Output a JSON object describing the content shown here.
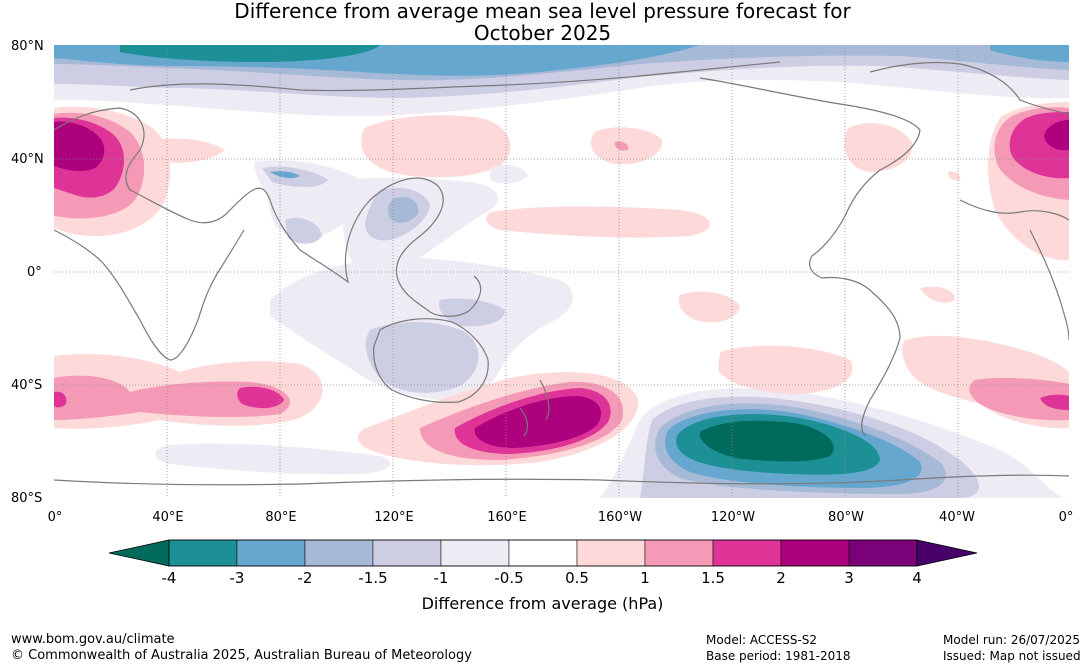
{
  "title": {
    "line1": "Difference from average mean sea level pressure forecast for",
    "line2": "October 2025"
  },
  "axes": {
    "lat_labels": [
      "80°N",
      "40°N",
      "0°",
      "40°S",
      "80°S"
    ],
    "lon_labels": [
      "0°",
      "40°E",
      "80°E",
      "120°E",
      "160°E",
      "160°W",
      "120°W",
      "80°W",
      "40°W",
      "0°"
    ]
  },
  "colorbar": {
    "ticks": [
      "-4",
      "-3",
      "-2",
      "-1.5",
      "-1",
      "-0.5",
      "0.5",
      "1",
      "1.5",
      "2",
      "3",
      "4"
    ],
    "colors": [
      "#006b5c",
      "#1c9095",
      "#66a7cf",
      "#a6b9d6",
      "#cdcde3",
      "#efebf4",
      "#ffffff",
      "#fdd9d9",
      "#f59ab6",
      "#de3497",
      "#ad017e",
      "#7a0177",
      "#49006a"
    ],
    "label": "Difference from average (hPa)"
  },
  "footer": {
    "website": "www.bom.gov.au/climate",
    "copyright": "© Commonwealth of Australia 2025, Australian Bureau of Meteorology",
    "model": "Model: ACCESS-S2",
    "base_period": "Base period: 1981-2018",
    "model_run": "Model run: 26/07/2025",
    "issued": "Issued: Map not issued"
  }
}
